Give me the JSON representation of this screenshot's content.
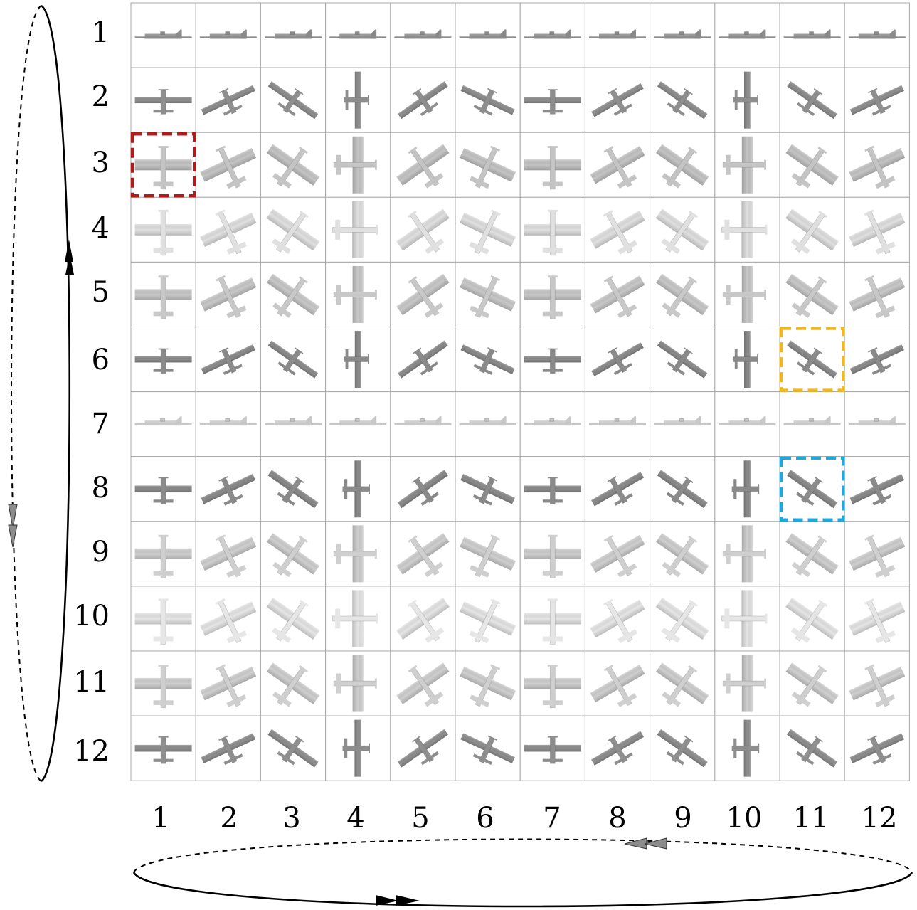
{
  "grid": {
    "rows": 12,
    "cols": 12,
    "row_labels": [
      "1",
      "2",
      "3",
      "4",
      "5",
      "6",
      "7",
      "8",
      "9",
      "10",
      "11",
      "12"
    ],
    "col_labels": [
      "1",
      "2",
      "3",
      "4",
      "5",
      "6",
      "7",
      "8",
      "9",
      "10",
      "11",
      "12"
    ]
  },
  "cells": {
    "icon": "airplane-icon",
    "row_shades": [
      "#8a8a8a",
      "#8e8e8e",
      "#c4c4c4",
      "#e0e0e0",
      "#c8c8c8",
      "#8a8a8a",
      "#c8c8c8",
      "#8a8a8a",
      "#cfcfcf",
      "#e6e6e6",
      "#cfcfcf",
      "#8e8e8e"
    ]
  },
  "highlights": [
    {
      "row": 3,
      "col": 1,
      "color": "#b01c1c"
    },
    {
      "row": 6,
      "col": 11,
      "color": "#f0b81c"
    },
    {
      "row": 8,
      "col": 11,
      "color": "#1fa8dc"
    }
  ],
  "colors": {
    "grid_line": "#a8a8a8",
    "loop_line": "#000000",
    "arrow_gray": "#8c8c8c"
  }
}
